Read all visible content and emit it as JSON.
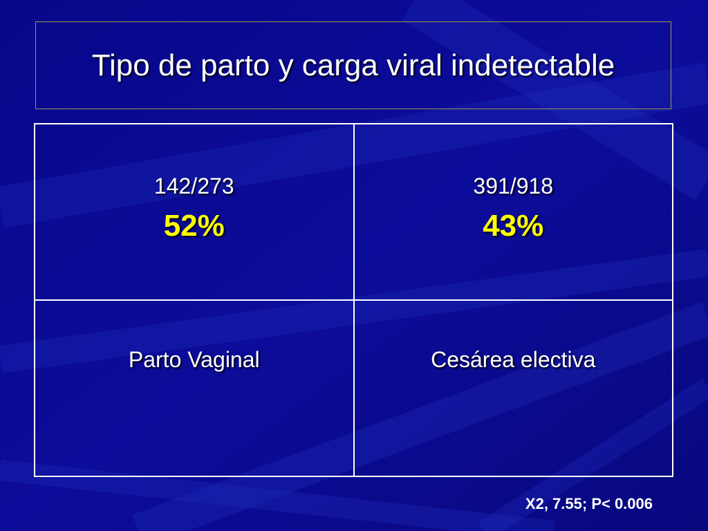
{
  "slide": {
    "title": "Tipo de parto y carga viral indetectable"
  },
  "table": {
    "columns": [
      {
        "fraction": "142/273",
        "percent": "52%",
        "label": "Parto Vaginal"
      },
      {
        "fraction": "391/918",
        "percent": "43%",
        "label": "Cesárea electiva"
      }
    ]
  },
  "footnote": "X2, 7.55; P< 0.006",
  "colors": {
    "background": "#0a0a8c",
    "text": "#ffffff",
    "highlight": "#ffff00"
  }
}
